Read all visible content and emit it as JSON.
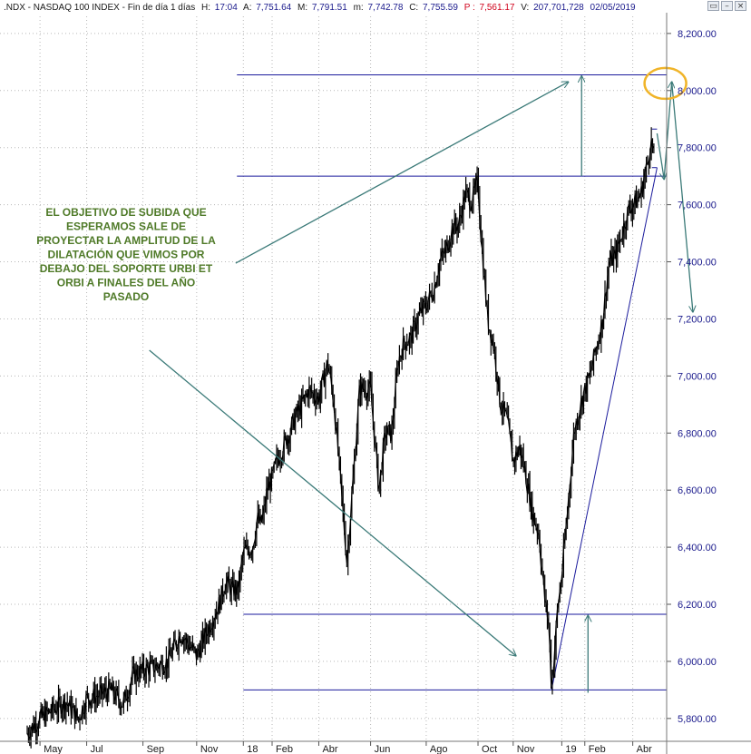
{
  "header": {
    "symbol": ".NDX - NASDAQ 100 INDEX - Fin de día 1 días",
    "h_label": "H:",
    "h_value": "17:04",
    "a_label": "A:",
    "a_value": "7,751.64",
    "m_label": "M:",
    "m_value": "7,791.51",
    "lo_label": "m:",
    "lo_value": "7,742.78",
    "c_label": "C:",
    "c_value": "7,755.59",
    "p_label": "P :",
    "p_value": "7,561.17",
    "v_label": "V:",
    "v_value": "207,701,728",
    "date": "02/05/2019",
    "window_buttons": {
      "restore": "▭",
      "minimize": "–",
      "close": "×"
    }
  },
  "colors": {
    "price": "#000000",
    "levels": "#1a1a9c",
    "arrows": "#3b7a78",
    "note_text": "#4f7a28",
    "highlight": "#f0b429",
    "axis_text": "#1a1a8c"
  },
  "annotation": {
    "lines": [
      "EL OBJETIVO DE SUBIDA QUE",
      "ESPERAMOS SALE DE",
      "PROYECTAR LA AMPLITUD DE LA",
      "DILATACIÓN QUE VIMOS POR",
      "DEBAJO DEL SOPORTE URBI ET",
      "ORBI A FINALES DEL AÑO",
      "PASADO"
    ]
  },
  "chart_data": {
    "type": "line",
    "title": ".NDX - NASDAQ 100 INDEX",
    "xlabel": "",
    "ylabel": "",
    "ylim": [
      5720,
      8260
    ],
    "yticks": [
      5800,
      6000,
      6200,
      6400,
      6600,
      6800,
      7000,
      7200,
      7400,
      7600,
      7800,
      8000,
      8200
    ],
    "ytick_labels": [
      "5,800.00",
      "6,000.00",
      "6,200.00",
      "6,400.00",
      "6,600.00",
      "6,800.00",
      "7,000.00",
      "7,200.00",
      "7,400.00",
      "7,600.00",
      "7,800.00",
      "8,000.00",
      "8,200.00"
    ],
    "xticks": [
      {
        "label": "May",
        "t": 0.02
      },
      {
        "label": "Jul",
        "t": 0.093
      },
      {
        "label": "Sep",
        "t": 0.181
      },
      {
        "label": "Nov",
        "t": 0.265
      },
      {
        "label": "18",
        "t": 0.338
      },
      {
        "label": "Feb",
        "t": 0.383
      },
      {
        "label": "Abr",
        "t": 0.456
      },
      {
        "label": "Jun",
        "t": 0.537
      },
      {
        "label": "Ago",
        "t": 0.624
      },
      {
        "label": "Oct",
        "t": 0.705
      },
      {
        "label": "Nov",
        "t": 0.76
      },
      {
        "label": "19",
        "t": 0.836
      },
      {
        "label": "Feb",
        "t": 0.872
      },
      {
        "label": "Abr",
        "t": 0.947
      }
    ],
    "grid": true,
    "horizontal_levels": [
      {
        "y": 8055,
        "t0": 0.328,
        "t1": 1.0
      },
      {
        "y": 7700,
        "t0": 0.328,
        "t1": 1.0
      },
      {
        "y": 6165,
        "t0": 0.338,
        "t1": 1.0
      },
      {
        "y": 5900,
        "t0": 0.338,
        "t1": 1.0
      }
    ],
    "trendline": {
      "t0": 0.82,
      "y0": 5900,
      "t1": 0.985,
      "y1": 7730
    },
    "series": [
      {
        "t": [
          0.0,
          0.02,
          0.04,
          0.06,
          0.08,
          0.093,
          0.11,
          0.13,
          0.15,
          0.165,
          0.181,
          0.2,
          0.22,
          0.24,
          0.265,
          0.28,
          0.3,
          0.31,
          0.32,
          0.33,
          0.338,
          0.345,
          0.352,
          0.36,
          0.365,
          0.37,
          0.375,
          0.383,
          0.39,
          0.4,
          0.41,
          0.415,
          0.42,
          0.43,
          0.44,
          0.456,
          0.465,
          0.47,
          0.48,
          0.5,
          0.51,
          0.52,
          0.537,
          0.55,
          0.56,
          0.57,
          0.58,
          0.59,
          0.6,
          0.61,
          0.615,
          0.624,
          0.635,
          0.645,
          0.655,
          0.665,
          0.675,
          0.685,
          0.695,
          0.705,
          0.71,
          0.72,
          0.73,
          0.74,
          0.75,
          0.76,
          0.77,
          0.78,
          0.79,
          0.8,
          0.81,
          0.815,
          0.82,
          0.825,
          0.83,
          0.836,
          0.845,
          0.855,
          0.865,
          0.872,
          0.88,
          0.89,
          0.9,
          0.91,
          0.92,
          0.93,
          0.94,
          0.947,
          0.955,
          0.96,
          0.965,
          0.97,
          0.975,
          0.98
        ],
        "y": [
          5750,
          5800,
          5830,
          5860,
          5800,
          5870,
          5880,
          5900,
          5850,
          5950,
          5970,
          5980,
          6000,
          6100,
          6020,
          6100,
          6200,
          6280,
          6250,
          6250,
          6380,
          6390,
          6400,
          6500,
          6480,
          6520,
          6600,
          6640,
          6700,
          6750,
          6800,
          6830,
          6860,
          6900,
          6950,
          6920,
          7000,
          7050,
          6900,
          6350,
          6650,
          6960,
          6950,
          6600,
          6800,
          6800,
          7050,
          7120,
          7130,
          7200,
          7220,
          7250,
          7300,
          7400,
          7440,
          7520,
          7530,
          7640,
          7610,
          7680,
          7480,
          7200,
          7100,
          6900,
          6850,
          6700,
          6750,
          6650,
          6520,
          6450,
          6200,
          6150,
          5910,
          6050,
          6200,
          6300,
          6530,
          6800,
          6900,
          6950,
          7000,
          7100,
          7200,
          7400,
          7420,
          7500,
          7580,
          7600,
          7620,
          7640,
          7700,
          7740,
          7830,
          7770
        ]
      }
    ],
    "annotations": [
      "EL OBJETIVO DE SUBIDA QUE ESPERAMOS SALE DE PROYECTAR LA AMPLITUD DE LA DILATACIÓN QUE VIMOS POR DEBAJO DEL SOPORTE URBI ET ORBI A FINALES DEL AÑO PASADO"
    ]
  }
}
